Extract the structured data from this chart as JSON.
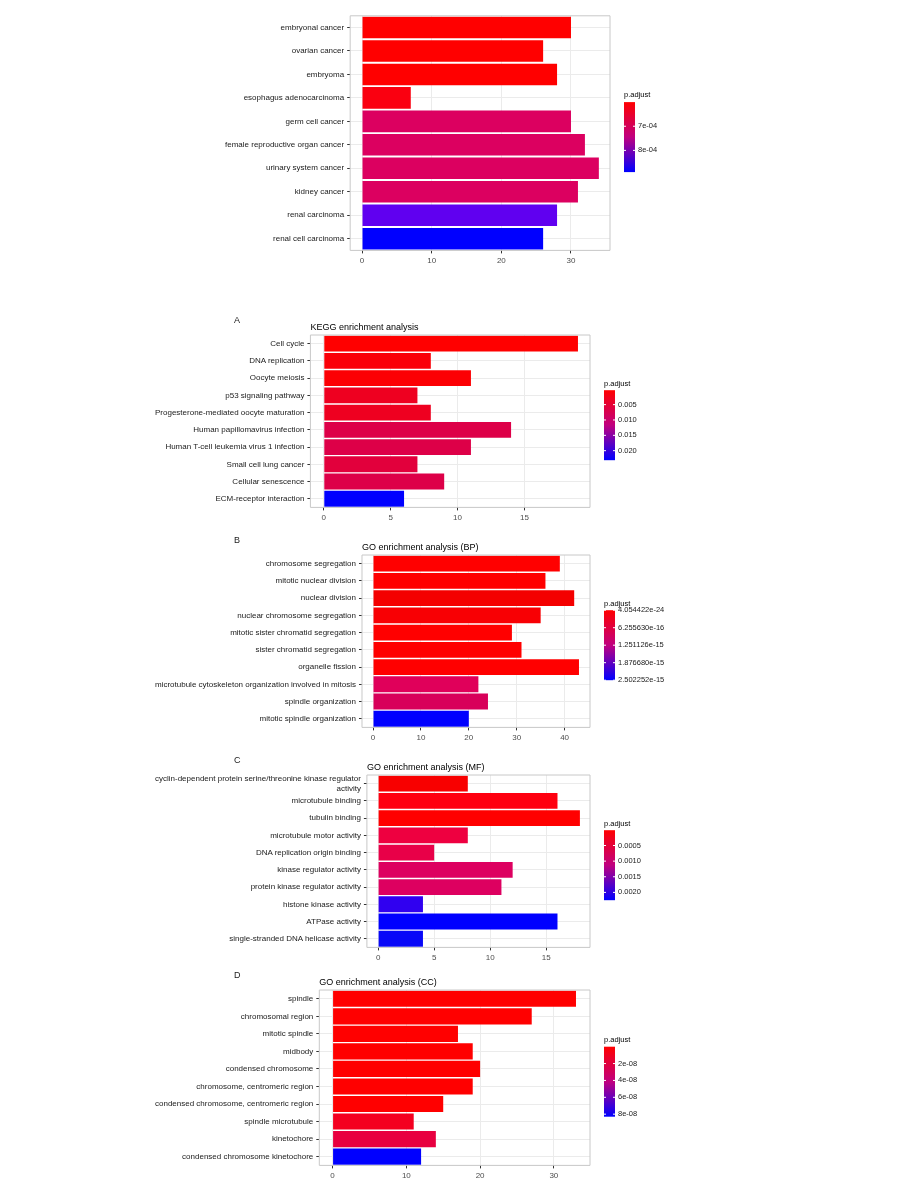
{
  "chart_data": [
    {
      "type": "bar",
      "orientation": "horizontal",
      "categories": [
        "embryonal cancer",
        "ovarian cancer",
        "embryoma",
        "esophagus adenocarcinoma",
        "germ cell cancer",
        "female reproductive organ cancer",
        "urinary system cancer",
        "kidney cancer",
        "renal carcinoma",
        "renal cell carcinoma"
      ],
      "values": [
        30,
        26,
        28,
        7,
        30,
        32,
        34,
        31,
        28,
        26
      ],
      "colors": [
        "#ff0000",
        "#ff0000",
        "#ff0000",
        "#fa0010",
        "#dc0060",
        "#dc0060",
        "#dc0060",
        "#dc0060",
        "#6000f0",
        "#0000ff"
      ],
      "xlim": [
        -1.7,
        35.6
      ],
      "xticks": [
        0,
        10,
        20,
        30
      ],
      "grid": true,
      "legend": false,
      "clabel": "p.adjust",
      "clim": [
        0.0006,
        0.00089
      ],
      "cticks": [
        {
          "value": 0.0007,
          "label": "7e-04"
        },
        {
          "value": 0.0008,
          "label": "8e-04"
        }
      ]
    },
    {
      "type": "bar",
      "orientation": "horizontal",
      "title": "KEGG enrichment analysis",
      "annotations": [
        "A"
      ],
      "categories": [
        "Cell cycle",
        "DNA replication",
        "Oocyte meiosis",
        "p53 signaling pathway",
        "Progesterone-mediated oocyte maturation",
        "Human papillomavirus infection",
        "Human T-cell leukemia virus 1 infection",
        "Small cell lung cancer",
        "Cellular senescence",
        "ECM-receptor interaction"
      ],
      "values": [
        19,
        8,
        11,
        7,
        8,
        14,
        11,
        7,
        9,
        6
      ],
      "colors": [
        "#ff0000",
        "#fa0008",
        "#fc0004",
        "#ee0020",
        "#ee0020",
        "#dd0048",
        "#dd0048",
        "#e2003c",
        "#dd0048",
        "#0000ff"
      ],
      "xlim": [
        -1.0,
        19.9
      ],
      "xticks": [
        0,
        5,
        10,
        15
      ],
      "grid": true,
      "legend": false,
      "clabel": "p.adjust",
      "clim": [
        0.0003,
        0.0231
      ],
      "cticks": [
        {
          "value": 0.005,
          "label": "0.005"
        },
        {
          "value": 0.01,
          "label": "0.010"
        },
        {
          "value": 0.015,
          "label": "0.015"
        },
        {
          "value": 0.02,
          "label": "0.020"
        }
      ]
    },
    {
      "type": "bar",
      "orientation": "horizontal",
      "title": "GO enrichment analysis (BP)",
      "annotations": [
        "B"
      ],
      "categories": [
        "chromosome segregation",
        "mitotic nuclear division",
        "nuclear division",
        "nuclear chromosome segregation",
        "mitotic sister chromatid segregation",
        "sister chromatid segregation",
        "organelle fission",
        "microtubule cytoskeleton organization involved in mitosis",
        "spindle organization",
        "mitotic spindle organization"
      ],
      "values": [
        39,
        36,
        42,
        35,
        29,
        31,
        43,
        22,
        24,
        20
      ],
      "colors": [
        "#ff0000",
        "#ff0000",
        "#f40000",
        "#f80004",
        "#ff0000",
        "#ff0000",
        "#ff0000",
        "#e0005a",
        "#d8005a",
        "#0000ff"
      ],
      "xlim": [
        -2.3,
        45.3
      ],
      "xticks": [
        0,
        10,
        20,
        30,
        40
      ],
      "grid": true,
      "legend": false,
      "clabel": "p.adjust",
      "clim": [
        4.054422e-24,
        2.502252e-15
      ],
      "cticks": [
        {
          "value": 4.054422e-24,
          "label": "4.054422e-24"
        },
        {
          "value": 6.25563e-16,
          "label": "6.255630e-16"
        },
        {
          "value": 1.251126e-15,
          "label": "1.251126e-15"
        },
        {
          "value": 1.87668e-15,
          "label": "1.876680e-15"
        },
        {
          "value": 2.502252e-15,
          "label": "2.502252e-15"
        }
      ]
    },
    {
      "type": "bar",
      "orientation": "horizontal",
      "title": "GO enrichment analysis (MF)",
      "annotations": [
        "C"
      ],
      "categories": [
        "cyclin-dependent protein serine/threonine kinase regulator activity",
        "microtubule binding",
        "tubulin binding",
        "microtubule motor activity",
        "DNA replication origin binding",
        "kinase regulator activity",
        "protein kinase regulator activity",
        "histone kinase activity",
        "ATPase activity",
        "single-stranded DNA helicase activity"
      ],
      "values": [
        8,
        16,
        18,
        8,
        5,
        12,
        11,
        4,
        16,
        4
      ],
      "colors": [
        "#f80000",
        "#ff0010",
        "#ff0000",
        "#ee0040",
        "#e80048",
        "#dd0060",
        "#dd0060",
        "#3000f0",
        "#0000ff",
        "#0808f8"
      ],
      "xlim": [
        -1.0,
        18.9
      ],
      "xticks": [
        0,
        5,
        10,
        15
      ],
      "grid": true,
      "legend": false,
      "clabel": "p.adjust",
      "clim": [
        1e-05,
        0.00225
      ],
      "cticks": [
        {
          "value": 0.0005,
          "label": "0.0005"
        },
        {
          "value": 0.001,
          "label": "0.0010"
        },
        {
          "value": 0.0015,
          "label": "0.0015"
        },
        {
          "value": 0.002,
          "label": "0.0020"
        }
      ]
    },
    {
      "type": "bar",
      "orientation": "horizontal",
      "title": "GO enrichment analysis (CC)",
      "annotations": [
        "D"
      ],
      "categories": [
        "spindle",
        "chromosomal region",
        "mitotic spindle",
        "midbody",
        "condensed chromosome",
        "chromosome, centromeric region",
        "condensed chromosome, centromeric region",
        "spindle microtubule",
        "kinetochore",
        "condensed chromosome kinetochore"
      ],
      "values": [
        33,
        27,
        17,
        19,
        20,
        19,
        15,
        11,
        14,
        12
      ],
      "colors": [
        "#ff0000",
        "#ff0000",
        "#ff0000",
        "#ff0000",
        "#ff0000",
        "#ff0000",
        "#ff0000",
        "#f40020",
        "#e80040",
        "#0000ff"
      ],
      "xlim": [
        -1.8,
        34.9
      ],
      "xticks": [
        0,
        10,
        20,
        30
      ],
      "grid": true,
      "legend": false,
      "clabel": "p.adjust",
      "clim": [
        0,
        8.3e-08
      ],
      "cticks": [
        {
          "value": 2e-08,
          "label": "2e-08"
        },
        {
          "value": 4e-08,
          "label": "4e-08"
        },
        {
          "value": 6e-08,
          "label": "6e-08"
        },
        {
          "value": 8e-08,
          "label": "8e-08"
        }
      ]
    }
  ]
}
